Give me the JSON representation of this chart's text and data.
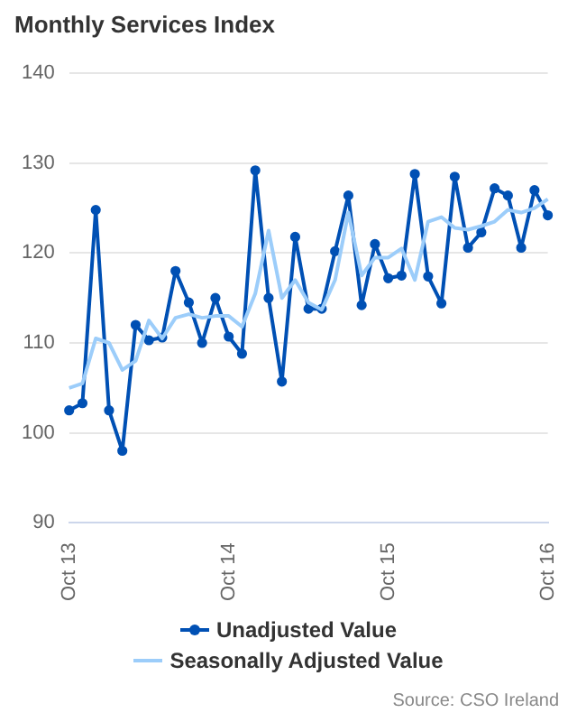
{
  "chart_data": {
    "type": "line",
    "title": "Monthly Services Index",
    "categories": [
      "Oct 13",
      null,
      null,
      null,
      null,
      null,
      null,
      null,
      null,
      null,
      null,
      null,
      "Oct 14",
      null,
      null,
      null,
      null,
      null,
      null,
      null,
      null,
      null,
      null,
      null,
      "Oct 15",
      null,
      null,
      null,
      null,
      null,
      null,
      null,
      null,
      null,
      null,
      null,
      "Oct 16"
    ],
    "series": [
      {
        "name": "Unadjusted Value",
        "color": "#0050b4",
        "marker": "circle",
        "values": [
          102.5,
          103.3,
          124.8,
          102.5,
          98,
          112,
          110.3,
          110.6,
          118,
          114.5,
          110,
          115,
          110.7,
          108.8,
          129.2,
          115,
          105.7,
          121.8,
          113.8,
          113.8,
          120.2,
          126.4,
          114.2,
          121,
          117.2,
          117.5,
          128.8,
          117.4,
          114.4,
          128.5,
          120.6,
          122.3,
          127.2,
          126.4,
          120.6,
          127,
          124.2
        ]
      },
      {
        "name": "Seasonally Adjusted Value",
        "color": "#9ccdfa",
        "marker": "none",
        "values": [
          105,
          105.5,
          110.5,
          110,
          107,
          108,
          112.5,
          110.5,
          112.8,
          113.2,
          112.8,
          113,
          113,
          111.8,
          115.5,
          122.5,
          115,
          117,
          114.5,
          113.7,
          117,
          124.5,
          117.5,
          119.5,
          119.5,
          120.5,
          117,
          123.5,
          124,
          122.8,
          122.6,
          123,
          123.5,
          124.8,
          124.5,
          125,
          126
        ]
      }
    ],
    "ylim": [
      90,
      140
    ],
    "yticks": [
      90,
      100,
      110,
      120,
      130,
      140
    ],
    "grid": "y",
    "legend": "bottom",
    "line_style": "solid",
    "annotations": [
      "Source: CSO Ireland"
    ]
  }
}
